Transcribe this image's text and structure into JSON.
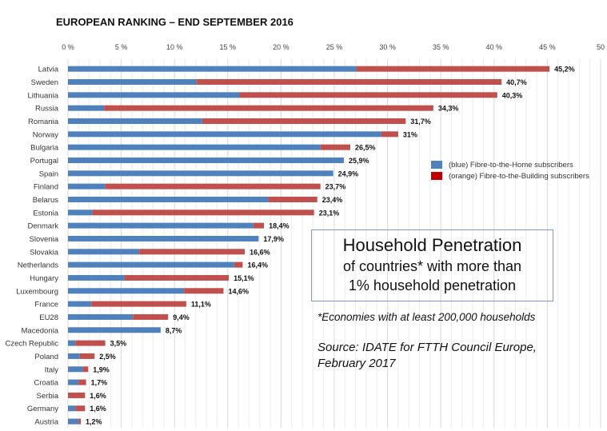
{
  "chart_data": {
    "type": "bar",
    "orientation": "horizontal",
    "stacked": true,
    "title": "EUROPEAN RANKING – END SEPTEMBER 2016",
    "xlim": [
      0,
      50
    ],
    "x_ticks": [
      "0 %",
      "5 %",
      "10 %",
      "15 %",
      "20 %",
      "25 %",
      "30 %",
      "35 %",
      "40 %",
      "45 %",
      "50"
    ],
    "x_tick_values": [
      0,
      5,
      10,
      15,
      20,
      25,
      30,
      35,
      40,
      45,
      50
    ],
    "grid": "vertical, every 1%",
    "legend_placement": "right",
    "categories": [
      "Latvia",
      "Sweden",
      "Lithuania",
      "Russia",
      "Romania",
      "Norway",
      "Bulgaria",
      "Portugal",
      "Spain",
      "Finland",
      "Belarus",
      "Estonia",
      "Denmark",
      "Slovenia",
      "Slovakia",
      "Netherlands",
      "Hungary",
      "Luxembourg",
      "France",
      "EU28",
      "Macedonia",
      "Czech Republic",
      "Poland",
      "Italy",
      "Croatia",
      "Serbia",
      "Germany",
      "Austria"
    ],
    "totals": [
      45.2,
      40.7,
      40.3,
      34.3,
      31.7,
      31,
      26.5,
      25.9,
      24.9,
      23.7,
      23.4,
      23.1,
      18.4,
      17.9,
      16.6,
      16.4,
      15.1,
      14.6,
      11.1,
      9.4,
      8.7,
      3.5,
      2.5,
      1.9,
      1.7,
      1.6,
      1.6,
      1.2
    ],
    "total_labels": [
      "45,2%",
      "40,7%",
      "40,3%",
      "34,3%",
      "31,7%",
      "31%",
      "26,5%",
      "25,9%",
      "24,9%",
      "23,7%",
      "23,4%",
      "23,1%",
      "18,4%",
      "17,9%",
      "16,6%",
      "16,4%",
      "15,1%",
      "14,6%",
      "11,1%",
      "9,4%",
      "8,7%",
      "3,5%",
      "2,5%",
      "1,9%",
      "1,7%",
      "1,6%",
      "1,6%",
      "1,2%"
    ],
    "series": [
      {
        "name": "(blue) Fibre-to-the-Home subscribers",
        "color": "#4f81bd",
        "values": [
          27.1,
          12.1,
          16.1,
          3.4,
          12.6,
          29.4,
          23.7,
          25.9,
          24.9,
          3.5,
          18.8,
          2.3,
          17.4,
          17.9,
          6.7,
          15.6,
          5.3,
          10.9,
          2.2,
          6.1,
          8.7,
          0.7,
          1.1,
          1.4,
          1.0,
          0,
          0.7,
          1.0
        ]
      },
      {
        "name": "(orange) Fibre-to-the-Building subscribers",
        "color": "#c0504d",
        "legend_color": "#c00000",
        "values": [
          18.1,
          28.6,
          24.2,
          30.9,
          19.1,
          1.6,
          2.8,
          0,
          0,
          20.2,
          4.6,
          20.8,
          1.0,
          0,
          9.9,
          0.8,
          9.8,
          3.7,
          8.9,
          3.3,
          0,
          2.8,
          1.4,
          0.5,
          0.7,
          1.6,
          0.9,
          0.2
        ]
      }
    ]
  },
  "box": {
    "line1": "Household Penetration",
    "line2": "of countries* with more than",
    "line3": "1% household penetration"
  },
  "footnote": "*Economies with at least 200,000 households",
  "source": {
    "line1": "Source: IDATE for FTTH Council Europe,",
    "line2": "February 2017"
  }
}
